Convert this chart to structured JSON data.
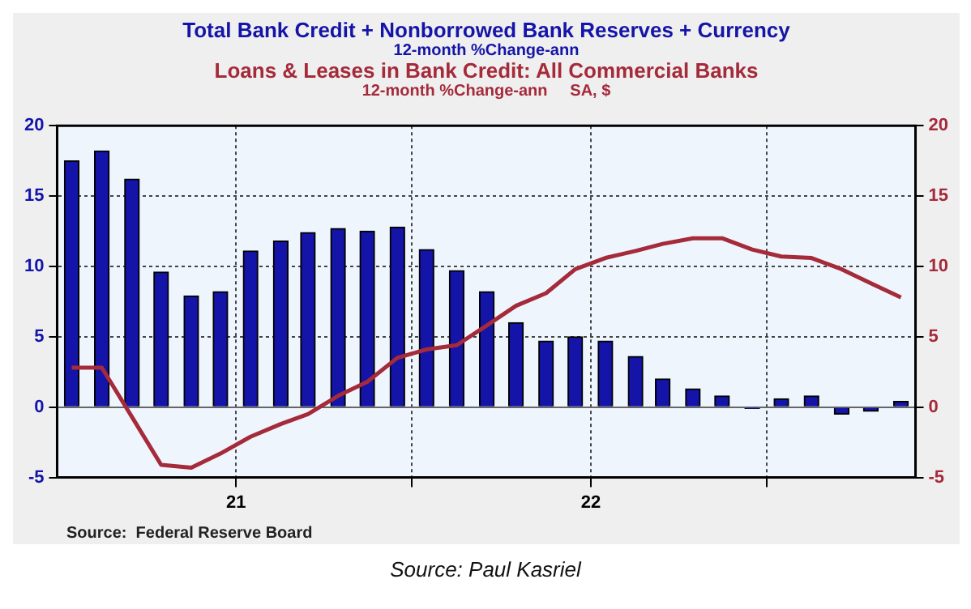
{
  "chart_data": {
    "type": "bar",
    "subtitle": "12-month %Change-ann",
    "x": [
      "2020-07-16",
      "2020-08-16",
      "2020-09-16",
      "2020-10-16",
      "2020-11-16",
      "2020-12-16",
      "2021-01-16",
      "2021-02-16",
      "2021-03-16",
      "2021-04-16",
      "2021-05-16",
      "2021-06-16",
      "2021-07-16",
      "2021-08-16",
      "2021-09-16",
      "2021-10-16",
      "2021-11-16",
      "2021-12-16",
      "2022-01-16",
      "2022-02-16",
      "2022-03-16",
      "2022-04-16",
      "2022-05-16",
      "2022-06-16",
      "2022-07-16",
      "2022-08-16",
      "2022-09-16",
      "2022-10-16",
      "2022-11-16"
    ],
    "series": [
      {
        "name": "Total Bank Credit + Nonborrowed Bank Reserves + Currency",
        "color": "#1414a8",
        "values": [
          17.5,
          18.2,
          16.2,
          9.6,
          7.9,
          8.2,
          11.1,
          11.8,
          12.4,
          12.7,
          12.5,
          12.8,
          11.2,
          9.7,
          8.2,
          6.0,
          4.7,
          5.0,
          4.7,
          3.6,
          2.0,
          1.3,
          0.8,
          -0.1,
          0.6,
          0.8,
          -0.5,
          -0.3,
          0.4
        ]
      },
      {
        "name": "Loans & Leases in Bank Credit: All Commercial Banks",
        "type": "line",
        "axis": "y2",
        "color": "#a52a3a",
        "values": [
          2.8,
          2.8,
          -0.7,
          -4.1,
          -4.3,
          -3.3,
          -2.1,
          -1.2,
          -0.5,
          0.8,
          1.8,
          3.5,
          4.1,
          4.4,
          5.8,
          7.2,
          8.1,
          9.8,
          10.6,
          11.1,
          11.6,
          12.0,
          12.0,
          11.2,
          10.7,
          10.6,
          9.8,
          8.8,
          7.8
        ]
      }
    ],
    "xlim": [
      "2020-07-01",
      "2022-12-01"
    ],
    "xticks": [
      {
        "value": "2021-01-01",
        "label": "21"
      },
      {
        "value": "2021-07-01",
        "label": null
      },
      {
        "value": "2022-01-01",
        "label": "22"
      },
      {
        "value": "2022-07-01",
        "label": null
      }
    ],
    "ylim": [
      -5,
      20
    ],
    "yticks": [
      -5,
      0,
      5,
      10,
      15,
      20
    ],
    "y2lim": [
      -5,
      20
    ],
    "y2ticks": [
      -5,
      0,
      5,
      10,
      15,
      20
    ],
    "grid": true,
    "legend": "top",
    "annotations": [
      "12-month %Change-ann     SA, $",
      "Source:  Federal Reserve Board",
      "Source: Paul Kasriel"
    ]
  }
}
